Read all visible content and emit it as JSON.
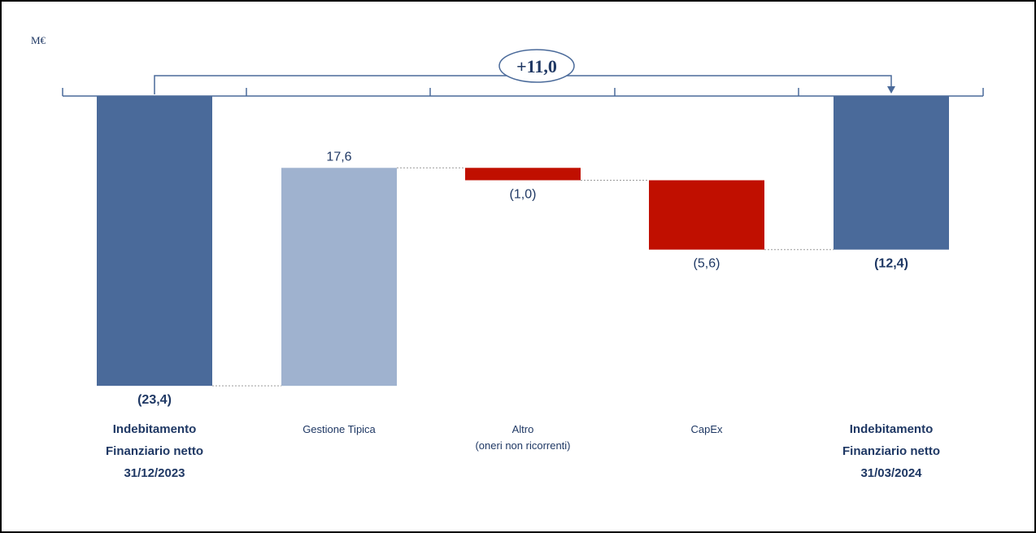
{
  "chart_data": {
    "type": "bar",
    "subtype": "waterfall",
    "unit_label": "M€",
    "categories": [
      {
        "lines": [
          "Indebitamento",
          "Finanziario netto",
          "31/12/2023"
        ],
        "bold": true
      },
      {
        "lines": [
          "Gestione Tipica"
        ],
        "bold": false
      },
      {
        "lines": [
          "Altro",
          "(oneri non ricorrenti)"
        ],
        "bold": false
      },
      {
        "lines": [
          "CapEx"
        ],
        "bold": false
      },
      {
        "lines": [
          "Indebitamento",
          "Finanziario netto",
          "31/03/2024"
        ],
        "bold": true
      }
    ],
    "values": [
      -23.4,
      17.6,
      -1.0,
      -5.6,
      -12.4
    ],
    "kinds": [
      "total",
      "increase",
      "decrease",
      "decrease",
      "total"
    ],
    "value_labels": [
      "(23,4)",
      "17,6",
      "(1,0)",
      "(5,6)",
      "(12,4)"
    ],
    "bridge_label": "+11,0",
    "colors": {
      "total": "#4a6a9a",
      "increase": "#9fb2cf",
      "decrease": "#c00f00",
      "text": "#1f3864",
      "axis": "#4a6a9a",
      "connector": "#9a9a9a"
    }
  }
}
